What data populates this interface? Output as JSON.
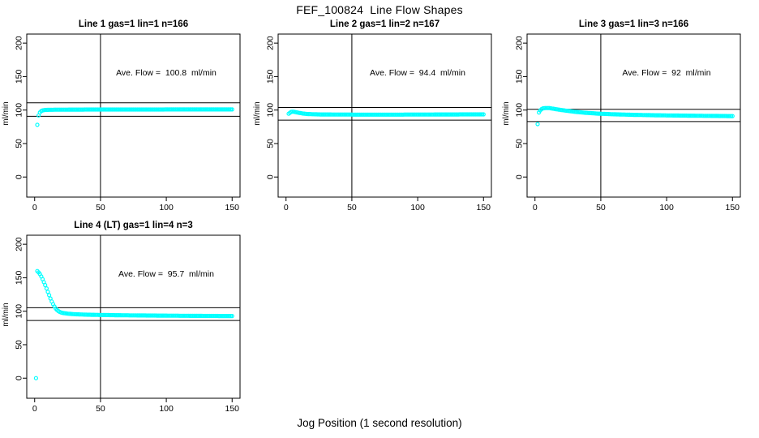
{
  "page": {
    "title": "FEF_100824  Line Flow Shapes",
    "xlabel": "Jog Position (1 second resolution)",
    "background_color": "#ffffff",
    "accent_color": "#00FFFF"
  },
  "chart_data": [
    {
      "type": "scatter",
      "title": "Line 1 gas=1 lin=1 n=166",
      "line": 1,
      "gas": 1,
      "lin": 1,
      "n": 166,
      "annotation": "Ave. Flow =  100.8  ml/min",
      "ave_flow_ml_min": 100.8,
      "ylabel": "ml/min",
      "x_ticks": [
        0,
        50,
        100,
        150
      ],
      "y_ticks": [
        0,
        50,
        100,
        150,
        200
      ],
      "xlim": [
        -6,
        156
      ],
      "ylim": [
        -30,
        213.5
      ],
      "hlines": [
        110.9,
        90.7
      ],
      "vline_x": 50,
      "point_color": "#00FFFF",
      "grid": false,
      "curve_points": [
        [
          2,
          78
        ],
        [
          3,
          92
        ],
        [
          4,
          96.5
        ],
        [
          5,
          98.5
        ],
        [
          6,
          99.5
        ],
        [
          8,
          100.2
        ],
        [
          12,
          100.5
        ],
        [
          20,
          100.6
        ],
        [
          40,
          100.8
        ],
        [
          70,
          100.8
        ],
        [
          100,
          100.9
        ],
        [
          130,
          101
        ],
        [
          150,
          101
        ]
      ],
      "outliers": []
    },
    {
      "type": "scatter",
      "title": "Line 2 gas=1 lin=2 n=167",
      "line": 2,
      "gas": 1,
      "lin": 2,
      "n": 167,
      "annotation": "Ave. Flow =  94.4  ml/min",
      "ave_flow_ml_min": 94.4,
      "ylabel": "ml/min",
      "x_ticks": [
        0,
        50,
        100,
        150
      ],
      "y_ticks": [
        0,
        50,
        100,
        150,
        200
      ],
      "xlim": [
        -6,
        156
      ],
      "ylim": [
        -30,
        213.5
      ],
      "hlines": [
        103.8,
        85.0
      ],
      "vline_x": 50,
      "point_color": "#00FFFF",
      "grid": false,
      "curve_points": [
        [
          2,
          94.5
        ],
        [
          3,
          96
        ],
        [
          4,
          97.3
        ],
        [
          5,
          97.6
        ],
        [
          6,
          97.4
        ],
        [
          8,
          96.6
        ],
        [
          10,
          95.8
        ],
        [
          13,
          94.8
        ],
        [
          16,
          94.2
        ],
        [
          20,
          93.8
        ],
        [
          26,
          93.5
        ],
        [
          40,
          93.3
        ],
        [
          70,
          93.2
        ],
        [
          100,
          93.3
        ],
        [
          130,
          93.5
        ],
        [
          150,
          93.6
        ]
      ],
      "outliers": []
    },
    {
      "type": "scatter",
      "title": "Line 3 gas=1 lin=3 n=166",
      "line": 3,
      "gas": 1,
      "lin": 3,
      "n": 166,
      "annotation": "Ave. Flow =  92  ml/min",
      "ave_flow_ml_min": 92,
      "ylabel": "ml/min",
      "x_ticks": [
        0,
        50,
        100,
        150
      ],
      "y_ticks": [
        0,
        50,
        100,
        150,
        200
      ],
      "xlim": [
        -6,
        156
      ],
      "ylim": [
        -30,
        213.5
      ],
      "hlines": [
        101.2,
        82.8
      ],
      "vline_x": 50,
      "point_color": "#00FFFF",
      "grid": false,
      "curve_points": [
        [
          2,
          79
        ],
        [
          3,
          96.5
        ],
        [
          4,
          99.5
        ],
        [
          5,
          101.5
        ],
        [
          6,
          102.5
        ],
        [
          8,
          103
        ],
        [
          11,
          103
        ],
        [
          14,
          102
        ],
        [
          18,
          100.7
        ],
        [
          24,
          99
        ],
        [
          30,
          97.5
        ],
        [
          38,
          96
        ],
        [
          48,
          94.7
        ],
        [
          60,
          93.7
        ],
        [
          75,
          92.9
        ],
        [
          90,
          92.3
        ],
        [
          110,
          91.8
        ],
        [
          130,
          91.4
        ],
        [
          150,
          91
        ]
      ],
      "outliers": []
    },
    {
      "type": "scatter",
      "title": "Line 4 (LT) gas=1 lin=4 n=3",
      "line": 4,
      "gas": 1,
      "lin": 4,
      "n": 3,
      "annotation": "Ave. Flow =  95.7  ml/min",
      "ave_flow_ml_min": 95.7,
      "ylabel": "ml/min",
      "x_ticks": [
        0,
        50,
        100,
        150
      ],
      "y_ticks": [
        0,
        50,
        100,
        150,
        200
      ],
      "xlim": [
        -6,
        156
      ],
      "ylim": [
        -30,
        213.5
      ],
      "hlines": [
        105.3,
        86.1
      ],
      "vline_x": 50,
      "point_color": "#00FFFF",
      "grid": false,
      "curve_points": [
        [
          2,
          160
        ],
        [
          3,
          158
        ],
        [
          4,
          155.5
        ],
        [
          5,
          152
        ],
        [
          6,
          148
        ],
        [
          7,
          143.5
        ],
        [
          8,
          139
        ],
        [
          9,
          134
        ],
        [
          10,
          129
        ],
        [
          11,
          124
        ],
        [
          12,
          119
        ],
        [
          13,
          114.5
        ],
        [
          14,
          110.5
        ],
        [
          15,
          107
        ],
        [
          16,
          104
        ],
        [
          17,
          101.8
        ],
        [
          18,
          100.2
        ],
        [
          19,
          99
        ],
        [
          20,
          98.2
        ],
        [
          22,
          97.2
        ],
        [
          25,
          96.4
        ],
        [
          28,
          95.9
        ],
        [
          32,
          95.4
        ],
        [
          40,
          94.8
        ],
        [
          50,
          94.4
        ],
        [
          65,
          94
        ],
        [
          80,
          93.7
        ],
        [
          100,
          93.4
        ],
        [
          120,
          93.1
        ],
        [
          150,
          92.8
        ]
      ],
      "outliers": [
        [
          1,
          0
        ]
      ]
    }
  ]
}
